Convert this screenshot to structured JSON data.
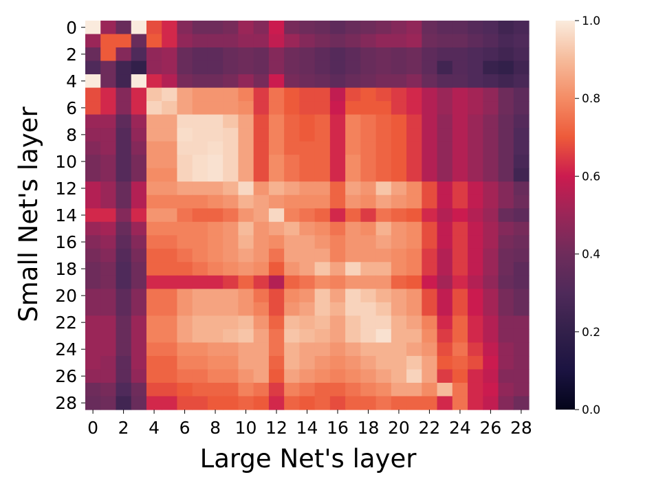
{
  "chart_data": {
    "type": "heatmap",
    "title": "",
    "xlabel": "Large Net's layer",
    "ylabel": "Small Net's layer",
    "x_tick_labels": [
      "0",
      "2",
      "4",
      "6",
      "8",
      "10",
      "12",
      "14",
      "16",
      "18",
      "20",
      "22",
      "24",
      "26",
      "28"
    ],
    "y_tick_labels": [
      "0",
      "2",
      "4",
      "6",
      "8",
      "10",
      "12",
      "14",
      "16",
      "18",
      "20",
      "22",
      "24",
      "26",
      "28"
    ],
    "colorbar": {
      "min": 0.0,
      "max": 1.0,
      "tick_labels": [
        "0.0",
        "0.2",
        "0.4",
        "0.6",
        "0.8",
        "1.0"
      ],
      "colormap": "rocket"
    },
    "rows": 29,
    "cols": 29,
    "values": [
      [
        1.0,
        0.5,
        0.38,
        1.0,
        0.68,
        0.62,
        0.45,
        0.4,
        0.4,
        0.42,
        0.5,
        0.45,
        0.6,
        0.42,
        0.4,
        0.38,
        0.35,
        0.38,
        0.4,
        0.42,
        0.45,
        0.48,
        0.38,
        0.35,
        0.35,
        0.32,
        0.3,
        0.25,
        0.28
      ],
      [
        0.5,
        0.7,
        0.7,
        0.38,
        0.7,
        0.62,
        0.48,
        0.45,
        0.45,
        0.45,
        0.48,
        0.48,
        0.58,
        0.5,
        0.45,
        0.42,
        0.4,
        0.42,
        0.45,
        0.48,
        0.48,
        0.5,
        0.4,
        0.38,
        0.38,
        0.35,
        0.32,
        0.28,
        0.3
      ],
      [
        0.38,
        0.7,
        0.45,
        0.3,
        0.48,
        0.5,
        0.38,
        0.35,
        0.35,
        0.38,
        0.4,
        0.38,
        0.45,
        0.4,
        0.38,
        0.35,
        0.32,
        0.35,
        0.38,
        0.4,
        0.38,
        0.4,
        0.35,
        0.32,
        0.32,
        0.3,
        0.28,
        0.25,
        0.28
      ],
      [
        0.3,
        0.4,
        0.25,
        0.2,
        0.48,
        0.5,
        0.38,
        0.35,
        0.35,
        0.38,
        0.4,
        0.38,
        0.45,
        0.4,
        0.38,
        0.35,
        0.32,
        0.35,
        0.38,
        0.4,
        0.38,
        0.4,
        0.35,
        0.25,
        0.32,
        0.3,
        0.22,
        0.2,
        0.25
      ],
      [
        1.0,
        0.4,
        0.25,
        1.0,
        0.62,
        0.55,
        0.42,
        0.4,
        0.4,
        0.42,
        0.48,
        0.42,
        0.6,
        0.42,
        0.4,
        0.38,
        0.35,
        0.38,
        0.4,
        0.42,
        0.42,
        0.45,
        0.38,
        0.33,
        0.33,
        0.3,
        0.28,
        0.25,
        0.28
      ],
      [
        0.68,
        0.62,
        0.45,
        0.62,
        0.92,
        0.95,
        0.85,
        0.82,
        0.82,
        0.82,
        0.78,
        0.65,
        0.75,
        0.7,
        0.68,
        0.68,
        0.58,
        0.68,
        0.7,
        0.68,
        0.65,
        0.62,
        0.55,
        0.5,
        0.55,
        0.52,
        0.48,
        0.4,
        0.35
      ],
      [
        0.68,
        0.62,
        0.45,
        0.62,
        0.95,
        0.92,
        0.85,
        0.82,
        0.82,
        0.82,
        0.8,
        0.65,
        0.75,
        0.7,
        0.68,
        0.68,
        0.6,
        0.7,
        0.7,
        0.7,
        0.65,
        0.62,
        0.55,
        0.5,
        0.55,
        0.52,
        0.48,
        0.4,
        0.35
      ],
      [
        0.5,
        0.5,
        0.35,
        0.5,
        0.85,
        0.85,
        0.96,
        0.96,
        0.96,
        0.92,
        0.85,
        0.68,
        0.78,
        0.72,
        0.7,
        0.72,
        0.62,
        0.78,
        0.75,
        0.72,
        0.7,
        0.65,
        0.55,
        0.48,
        0.55,
        0.5,
        0.45,
        0.38,
        0.32
      ],
      [
        0.48,
        0.48,
        0.32,
        0.48,
        0.85,
        0.85,
        0.97,
        0.96,
        0.96,
        0.95,
        0.85,
        0.68,
        0.78,
        0.72,
        0.7,
        0.72,
        0.62,
        0.78,
        0.75,
        0.72,
        0.7,
        0.65,
        0.55,
        0.48,
        0.55,
        0.5,
        0.45,
        0.38,
        0.3
      ],
      [
        0.45,
        0.48,
        0.32,
        0.45,
        0.82,
        0.82,
        0.96,
        0.96,
        0.97,
        0.95,
        0.85,
        0.68,
        0.78,
        0.72,
        0.72,
        0.72,
        0.62,
        0.78,
        0.75,
        0.72,
        0.7,
        0.65,
        0.55,
        0.48,
        0.55,
        0.5,
        0.45,
        0.38,
        0.3
      ],
      [
        0.42,
        0.45,
        0.32,
        0.42,
        0.82,
        0.82,
        0.95,
        0.97,
        0.98,
        0.95,
        0.85,
        0.68,
        0.8,
        0.75,
        0.72,
        0.72,
        0.62,
        0.8,
        0.75,
        0.72,
        0.7,
        0.65,
        0.55,
        0.48,
        0.55,
        0.5,
        0.45,
        0.38,
        0.28
      ],
      [
        0.42,
        0.45,
        0.32,
        0.42,
        0.8,
        0.8,
        0.95,
        0.97,
        0.98,
        0.95,
        0.85,
        0.68,
        0.8,
        0.75,
        0.72,
        0.72,
        0.62,
        0.8,
        0.75,
        0.72,
        0.7,
        0.65,
        0.55,
        0.48,
        0.55,
        0.5,
        0.45,
        0.38,
        0.25
      ],
      [
        0.55,
        0.5,
        0.38,
        0.55,
        0.82,
        0.82,
        0.85,
        0.85,
        0.85,
        0.88,
        0.96,
        0.82,
        0.88,
        0.85,
        0.82,
        0.82,
        0.72,
        0.85,
        0.82,
        0.92,
        0.85,
        0.8,
        0.68,
        0.58,
        0.65,
        0.58,
        0.52,
        0.45,
        0.38
      ],
      [
        0.55,
        0.5,
        0.38,
        0.55,
        0.78,
        0.78,
        0.78,
        0.78,
        0.8,
        0.82,
        0.88,
        0.85,
        0.82,
        0.8,
        0.8,
        0.8,
        0.72,
        0.82,
        0.8,
        0.85,
        0.82,
        0.8,
        0.68,
        0.58,
        0.65,
        0.58,
        0.52,
        0.45,
        0.4
      ],
      [
        0.62,
        0.62,
        0.45,
        0.62,
        0.82,
        0.82,
        0.75,
        0.72,
        0.72,
        0.75,
        0.82,
        0.85,
        0.96,
        0.78,
        0.75,
        0.72,
        0.62,
        0.72,
        0.65,
        0.75,
        0.72,
        0.7,
        0.62,
        0.55,
        0.6,
        0.55,
        0.5,
        0.38,
        0.35
      ],
      [
        0.5,
        0.52,
        0.38,
        0.5,
        0.78,
        0.78,
        0.78,
        0.78,
        0.8,
        0.82,
        0.9,
        0.82,
        0.85,
        0.88,
        0.82,
        0.8,
        0.75,
        0.82,
        0.8,
        0.88,
        0.82,
        0.8,
        0.68,
        0.58,
        0.65,
        0.58,
        0.52,
        0.45,
        0.42
      ],
      [
        0.45,
        0.48,
        0.35,
        0.45,
        0.75,
        0.75,
        0.78,
        0.78,
        0.8,
        0.82,
        0.88,
        0.82,
        0.8,
        0.85,
        0.85,
        0.82,
        0.78,
        0.82,
        0.82,
        0.85,
        0.82,
        0.8,
        0.68,
        0.58,
        0.65,
        0.58,
        0.52,
        0.42,
        0.4
      ],
      [
        0.42,
        0.45,
        0.32,
        0.42,
        0.72,
        0.72,
        0.75,
        0.78,
        0.8,
        0.82,
        0.85,
        0.82,
        0.75,
        0.85,
        0.85,
        0.85,
        0.78,
        0.82,
        0.82,
        0.82,
        0.8,
        0.78,
        0.65,
        0.55,
        0.65,
        0.58,
        0.5,
        0.4,
        0.38
      ],
      [
        0.4,
        0.42,
        0.3,
        0.4,
        0.72,
        0.72,
        0.72,
        0.75,
        0.78,
        0.8,
        0.82,
        0.8,
        0.7,
        0.82,
        0.85,
        0.92,
        0.85,
        0.95,
        0.88,
        0.88,
        0.8,
        0.78,
        0.65,
        0.55,
        0.65,
        0.58,
        0.5,
        0.4,
        0.35
      ],
      [
        0.4,
        0.42,
        0.3,
        0.4,
        0.62,
        0.62,
        0.62,
        0.62,
        0.62,
        0.65,
        0.72,
        0.65,
        0.55,
        0.72,
        0.75,
        0.8,
        0.78,
        0.82,
        0.82,
        0.82,
        0.72,
        0.7,
        0.6,
        0.52,
        0.62,
        0.55,
        0.48,
        0.38,
        0.35
      ],
      [
        0.45,
        0.45,
        0.35,
        0.45,
        0.75,
        0.75,
        0.82,
        0.85,
        0.85,
        0.85,
        0.82,
        0.75,
        0.68,
        0.8,
        0.82,
        0.92,
        0.85,
        0.95,
        0.92,
        0.88,
        0.85,
        0.82,
        0.68,
        0.58,
        0.68,
        0.6,
        0.52,
        0.42,
        0.38
      ],
      [
        0.45,
        0.45,
        0.35,
        0.45,
        0.75,
        0.75,
        0.82,
        0.85,
        0.85,
        0.85,
        0.82,
        0.78,
        0.68,
        0.82,
        0.85,
        0.92,
        0.88,
        0.95,
        0.95,
        0.92,
        0.85,
        0.82,
        0.68,
        0.58,
        0.68,
        0.6,
        0.52,
        0.42,
        0.38
      ],
      [
        0.5,
        0.5,
        0.38,
        0.5,
        0.78,
        0.78,
        0.85,
        0.88,
        0.88,
        0.88,
        0.9,
        0.82,
        0.72,
        0.9,
        0.88,
        0.9,
        0.85,
        0.92,
        0.95,
        0.95,
        0.88,
        0.85,
        0.78,
        0.62,
        0.72,
        0.62,
        0.55,
        0.45,
        0.45
      ],
      [
        0.5,
        0.5,
        0.38,
        0.5,
        0.78,
        0.78,
        0.85,
        0.88,
        0.88,
        0.9,
        0.92,
        0.85,
        0.75,
        0.92,
        0.9,
        0.88,
        0.85,
        0.92,
        0.95,
        0.98,
        0.88,
        0.88,
        0.8,
        0.65,
        0.72,
        0.62,
        0.55,
        0.45,
        0.45
      ],
      [
        0.5,
        0.5,
        0.38,
        0.5,
        0.75,
        0.75,
        0.8,
        0.8,
        0.82,
        0.82,
        0.85,
        0.85,
        0.75,
        0.88,
        0.85,
        0.85,
        0.82,
        0.85,
        0.88,
        0.88,
        0.88,
        0.85,
        0.82,
        0.68,
        0.75,
        0.65,
        0.58,
        0.48,
        0.45
      ],
      [
        0.5,
        0.48,
        0.35,
        0.5,
        0.72,
        0.72,
        0.78,
        0.78,
        0.8,
        0.8,
        0.85,
        0.85,
        0.72,
        0.88,
        0.85,
        0.82,
        0.8,
        0.82,
        0.85,
        0.88,
        0.88,
        0.92,
        0.85,
        0.7,
        0.72,
        0.68,
        0.6,
        0.48,
        0.45
      ],
      [
        0.48,
        0.48,
        0.35,
        0.48,
        0.72,
        0.72,
        0.75,
        0.75,
        0.78,
        0.78,
        0.82,
        0.85,
        0.7,
        0.85,
        0.82,
        0.8,
        0.78,
        0.8,
        0.82,
        0.85,
        0.88,
        0.95,
        0.85,
        0.65,
        0.7,
        0.62,
        0.58,
        0.45,
        0.45
      ],
      [
        0.4,
        0.42,
        0.3,
        0.4,
        0.68,
        0.68,
        0.7,
        0.72,
        0.72,
        0.72,
        0.78,
        0.75,
        0.65,
        0.78,
        0.75,
        0.72,
        0.72,
        0.75,
        0.78,
        0.8,
        0.85,
        0.85,
        0.8,
        0.9,
        0.75,
        0.62,
        0.6,
        0.48,
        0.45
      ],
      [
        0.38,
        0.4,
        0.25,
        0.38,
        0.62,
        0.62,
        0.68,
        0.68,
        0.7,
        0.7,
        0.72,
        0.7,
        0.62,
        0.72,
        0.7,
        0.72,
        0.68,
        0.72,
        0.72,
        0.75,
        0.72,
        0.72,
        0.72,
        0.62,
        0.75,
        0.62,
        0.58,
        0.45,
        0.4
      ]
    ]
  }
}
